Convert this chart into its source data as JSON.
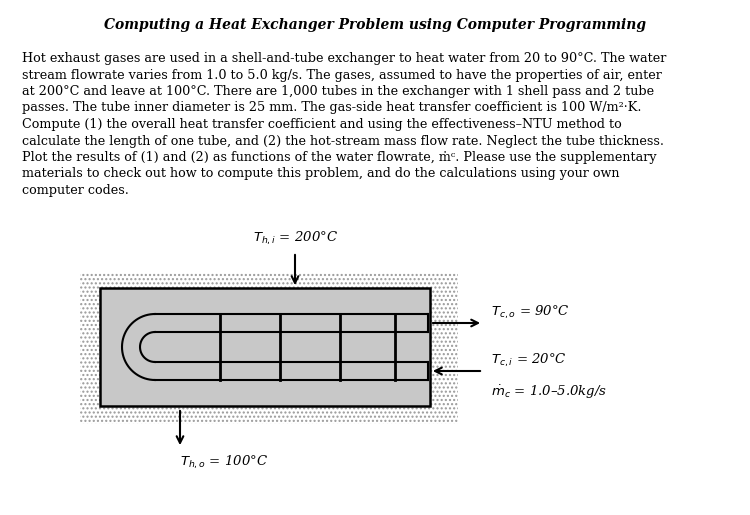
{
  "title": "Computing a Heat Exchanger Problem using Computer Programming",
  "para_lines": [
    "Hot exhaust gases are used in a shell-and-tube exchanger to heat water from 20 to 90°C. The water",
    "stream flowrate varies from 1.0 to 5.0 kg/s. The gases, assumed to have the properties of air, enter",
    "at 200°C and leave at 100°C. There are 1,000 tubes in the exchanger with 1 shell pass and 2 tube",
    "passes. The tube inner diameter is 25 mm. The gas-side heat transfer coefficient is 100 W/m²·K.",
    "Compute (1) the overall heat transfer coefficient and using the effectiveness–NTU method to",
    "calculate the length of one tube, and (2) the hot-stream mass flow rate. Neglect the tube thickness.",
    "Plot the results of (1) and (2) as functions of the water flowrate, ṁᶜ. Please use the supplementary",
    "materials to check out how to compute this problem, and do the calculations using your own",
    "computer codes."
  ],
  "label_thi": "$T_{h,i}$ = 200°C",
  "label_tho": "$T_{h,o}$ = 100°C",
  "label_tco": "$T_{c,o}$ = 90°C",
  "label_tci": "$T_{c,i}$ = 20°C",
  "label_mc": "$\\dot{m}_c$ = 1.0–5.0kg/s",
  "bg_color": "#ffffff",
  "text_color": "#000000",
  "shell_fill": "#c8c8c8",
  "hatch_bg": "#e0e0e0"
}
